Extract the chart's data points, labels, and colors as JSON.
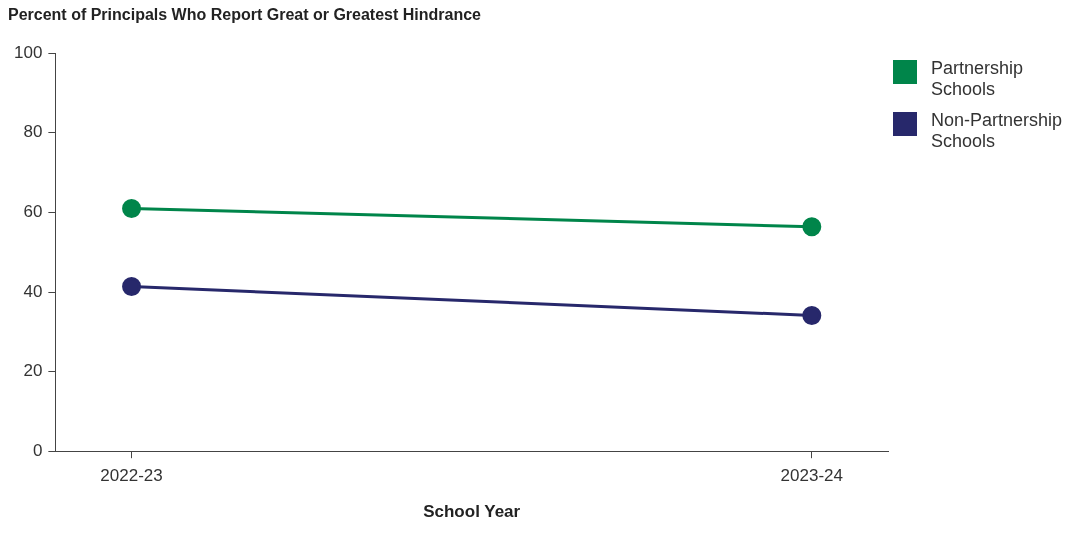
{
  "chart_data": {
    "type": "line",
    "title": "Percent of Principals Who Report Great or Greatest Hindrance",
    "xlabel": "School Year",
    "categories": [
      "2022-23",
      "2023-24"
    ],
    "series": [
      {
        "name": "Partnership Schools",
        "color": "#00854a",
        "values": [
          61.0,
          56.4
        ]
      },
      {
        "name": "Non-Partnership Schools",
        "color": "#27286b",
        "values": [
          41.4,
          34.1
        ]
      }
    ],
    "ylim": [
      0,
      100
    ],
    "yticks": [
      0,
      20,
      40,
      60,
      80,
      100
    ],
    "grid": false,
    "legend": "top right",
    "marker": "circle",
    "line_style": "solid"
  }
}
